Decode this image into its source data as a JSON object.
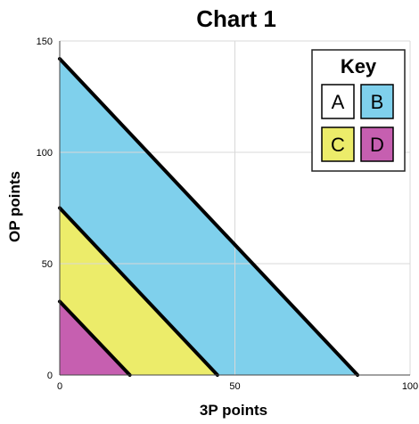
{
  "chart_data": {
    "type": "area",
    "title": "Chart 1",
    "xlabel": "3P points",
    "ylabel": "OP points",
    "xlim": [
      0,
      100
    ],
    "ylim": [
      0,
      150
    ],
    "x_ticks": [
      0,
      50,
      100
    ],
    "y_ticks": [
      0,
      50,
      100,
      150
    ],
    "grid": true,
    "legend_position": "top-right",
    "legend_title": "Key",
    "regions": [
      {
        "name": "D",
        "color": "#c65fb0",
        "boundary": {
          "x_intercept": 20,
          "y_intercept": 33
        }
      },
      {
        "name": "C",
        "color": "#ecec6a",
        "boundary": {
          "x_intercept": 45,
          "y_intercept": 75
        }
      },
      {
        "name": "B",
        "color": "#7fd0ec",
        "boundary": {
          "x_intercept": 85,
          "y_intercept": 142
        }
      },
      {
        "name": "A",
        "color": "#ffffff"
      }
    ],
    "key_items": [
      {
        "label": "A",
        "color": "#ffffff"
      },
      {
        "label": "B",
        "color": "#7fd0ec"
      },
      {
        "label": "C",
        "color": "#ecec6a"
      },
      {
        "label": "D",
        "color": "#c65fb0"
      }
    ]
  }
}
